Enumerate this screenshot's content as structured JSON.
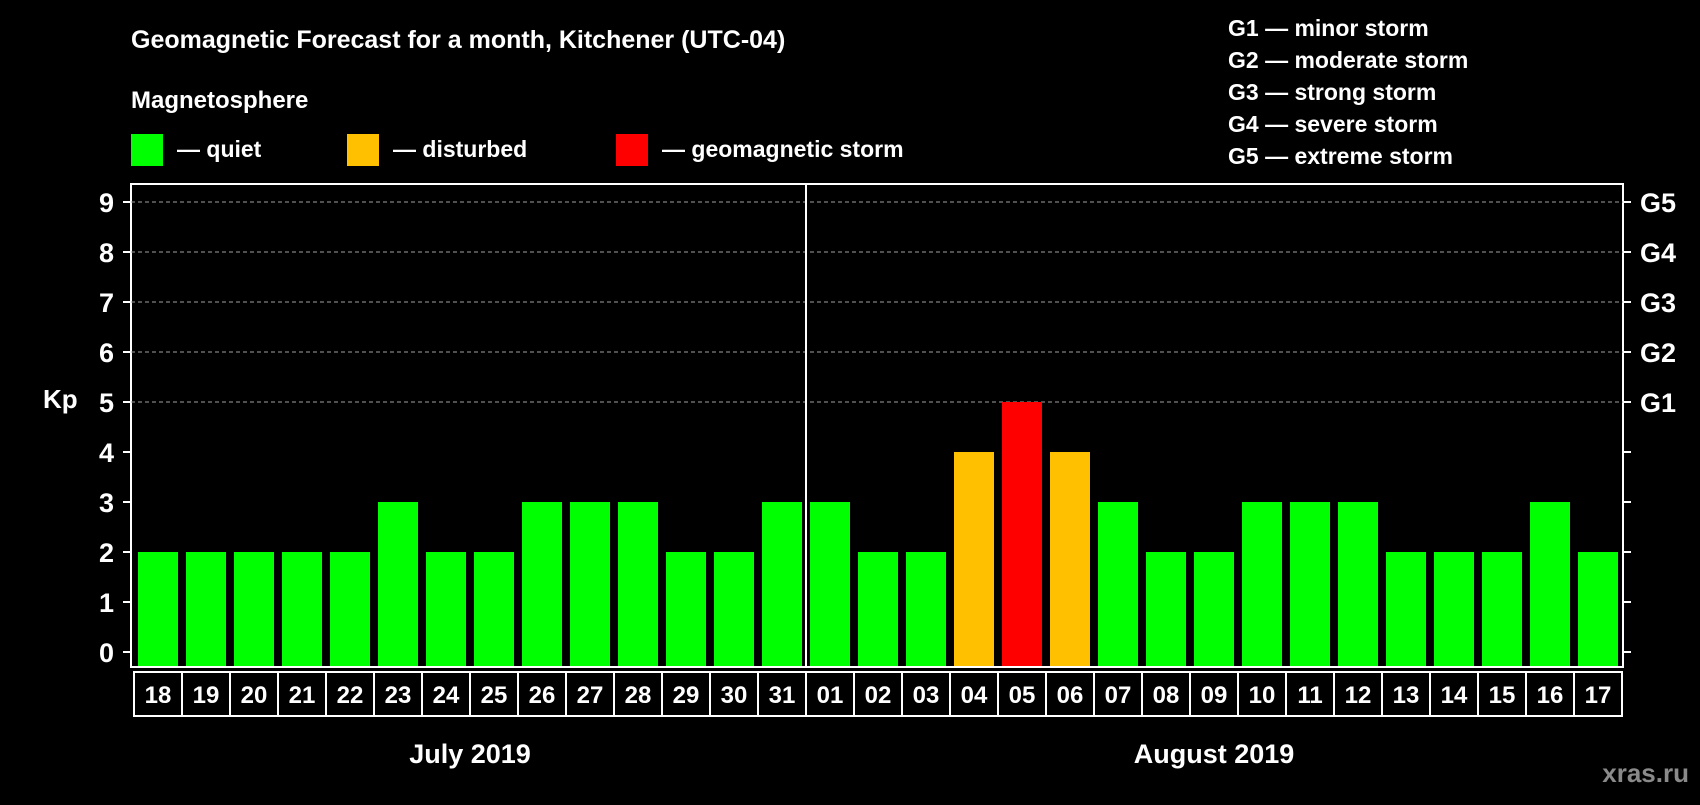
{
  "chart_data": {
    "type": "bar",
    "title": "Geomagnetic Forecast for a month, Kitchener (UTC-04)",
    "legend_title": "Magnetosphere",
    "legend": [
      {
        "label": "— quiet",
        "color": "#00ff00"
      },
      {
        "label": "— disturbed",
        "color": "#ffc000"
      },
      {
        "label": "— geomagnetic storm",
        "color": "#ff0000"
      }
    ],
    "storm_scale": [
      "G1 — minor storm",
      "G2 — moderate storm",
      "G3 — strong storm",
      "G4 — severe storm",
      "G5 — extreme storm"
    ],
    "ylabel": "Kp",
    "ylim": [
      0,
      9
    ],
    "yticks": [
      "0",
      "1",
      "2",
      "3",
      "4",
      "5",
      "6",
      "7",
      "8",
      "9"
    ],
    "right_ticks": [
      {
        "kp": 5,
        "label": "G1"
      },
      {
        "kp": 6,
        "label": "G2"
      },
      {
        "kp": 7,
        "label": "G3"
      },
      {
        "kp": 8,
        "label": "G4"
      },
      {
        "kp": 9,
        "label": "G5"
      }
    ],
    "grid": "dashed at Kp 5-9",
    "categories": [
      "18",
      "19",
      "20",
      "21",
      "22",
      "23",
      "24",
      "25",
      "26",
      "27",
      "28",
      "29",
      "30",
      "31",
      "01",
      "02",
      "03",
      "04",
      "05",
      "06",
      "07",
      "08",
      "09",
      "10",
      "11",
      "12",
      "13",
      "14",
      "15",
      "16",
      "17"
    ],
    "values": [
      2,
      2,
      2,
      2,
      2,
      3,
      2,
      2,
      3,
      3,
      3,
      2,
      2,
      3,
      3,
      2,
      2,
      4,
      5,
      4,
      3,
      2,
      2,
      3,
      3,
      3,
      2,
      2,
      2,
      3,
      2
    ],
    "months": [
      {
        "label": "July 2019",
        "first_index": 0,
        "last_index": 13
      },
      {
        "label": "August 2019",
        "first_index": 14,
        "last_index": 30
      }
    ],
    "colors": {
      "quiet": "#00ff00",
      "disturbed": "#ffc000",
      "storm": "#ff0000",
      "axis": "#ffffff",
      "grid": "#a0a0a0"
    }
  },
  "watermark": "xras.ru"
}
